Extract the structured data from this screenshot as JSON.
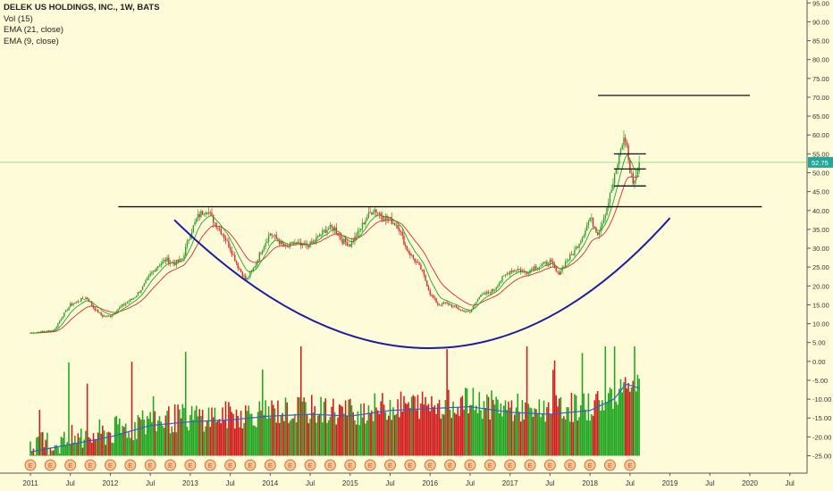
{
  "legend": {
    "title": "DELEK US HOLDINGS, INC., 1W, BATS",
    "vol": "Vol (15)",
    "ema21": "EMA (21, close)",
    "ema9": "EMA (9, close)"
  },
  "chart_data": {
    "type": "candlestick",
    "symbol": "DELEK US HOLDINGS, INC.",
    "interval": "1W",
    "exchange": "BATS",
    "last_price": 52.75,
    "last_price_label": "52.75",
    "y_ticks": [
      "95.00",
      "90.00",
      "85.00",
      "80.00",
      "75.00",
      "70.00",
      "65.00",
      "60.00",
      "55.00",
      "50.00",
      "45.00",
      "40.00",
      "35.00",
      "30.00",
      "25.00",
      "20.00",
      "15.00",
      "10.00",
      "5.00",
      "0.00",
      "-5.00",
      "-10.00",
      "-15.00",
      "-20.00",
      "-25.00"
    ],
    "x_ticks": [
      "2011",
      "Jul",
      "2012",
      "Jul",
      "2013",
      "Jul",
      "2014",
      "Jul",
      "2015",
      "Jul",
      "2016",
      "Jul",
      "2017",
      "Jul",
      "2018",
      "Jul",
      "2019",
      "Jul",
      "2020",
      "Jul"
    ],
    "earnings_marker": "E",
    "price_points": [
      [
        2011.0,
        7.5
      ],
      [
        2011.1,
        7.8
      ],
      [
        2011.2,
        8.0
      ],
      [
        2011.3,
        8.3
      ],
      [
        2011.4,
        12.0
      ],
      [
        2011.5,
        15.0
      ],
      [
        2011.6,
        16.0
      ],
      [
        2011.7,
        17.0
      ],
      [
        2011.8,
        14.0
      ],
      [
        2011.9,
        12.0
      ],
      [
        2012.0,
        12.0
      ],
      [
        2012.1,
        14.0
      ],
      [
        2012.2,
        15.5
      ],
      [
        2012.3,
        17.0
      ],
      [
        2012.4,
        19.5
      ],
      [
        2012.5,
        23.0
      ],
      [
        2012.6,
        25.5
      ],
      [
        2012.7,
        27.0
      ],
      [
        2012.8,
        26.0
      ],
      [
        2012.9,
        27.0
      ],
      [
        2013.0,
        34.0
      ],
      [
        2013.1,
        38.5
      ],
      [
        2013.2,
        40.5
      ],
      [
        2013.3,
        37.0
      ],
      [
        2013.4,
        34.0
      ],
      [
        2013.5,
        30.0
      ],
      [
        2013.6,
        25.0
      ],
      [
        2013.7,
        21.5
      ],
      [
        2013.8,
        25.0
      ],
      [
        2013.9,
        30.0
      ],
      [
        2014.0,
        34.0
      ],
      [
        2014.1,
        32.0
      ],
      [
        2014.2,
        30.0
      ],
      [
        2014.3,
        31.5
      ],
      [
        2014.4,
        30.5
      ],
      [
        2014.5,
        31.0
      ],
      [
        2014.6,
        33.0
      ],
      [
        2014.7,
        35.0
      ],
      [
        2014.8,
        35.5
      ],
      [
        2014.9,
        32.0
      ],
      [
        2015.0,
        31.0
      ],
      [
        2015.1,
        34.0
      ],
      [
        2015.2,
        38.0
      ],
      [
        2015.3,
        40.5
      ],
      [
        2015.4,
        38.5
      ],
      [
        2015.5,
        37.5
      ],
      [
        2015.6,
        36.0
      ],
      [
        2015.7,
        30.0
      ],
      [
        2015.8,
        27.0
      ],
      [
        2015.9,
        24.0
      ],
      [
        2016.0,
        18.0
      ],
      [
        2016.1,
        15.0
      ],
      [
        2016.2,
        15.5
      ],
      [
        2016.3,
        14.5
      ],
      [
        2016.4,
        13.5
      ],
      [
        2016.5,
        13.0
      ],
      [
        2016.6,
        17.0
      ],
      [
        2016.7,
        18.0
      ],
      [
        2016.8,
        19.0
      ],
      [
        2016.9,
        22.0
      ],
      [
        2017.0,
        24.0
      ],
      [
        2017.1,
        24.5
      ],
      [
        2017.2,
        23.5
      ],
      [
        2017.3,
        25.0
      ],
      [
        2017.4,
        25.5
      ],
      [
        2017.5,
        26.5
      ],
      [
        2017.6,
        23.0
      ],
      [
        2017.7,
        26.5
      ],
      [
        2017.8,
        29.0
      ],
      [
        2017.9,
        33.0
      ],
      [
        2018.0,
        38.0
      ],
      [
        2018.1,
        34.0
      ],
      [
        2018.2,
        40.0
      ],
      [
        2018.3,
        48.0
      ],
      [
        2018.4,
        58.0
      ],
      [
        2018.45,
        59.0
      ],
      [
        2018.5,
        50.0
      ],
      [
        2018.55,
        47.5
      ],
      [
        2018.62,
        52.75
      ]
    ],
    "volume_ema": [
      [
        2011.0,
        -24.0
      ],
      [
        2011.5,
        -22.0
      ],
      [
        2012.0,
        -20.0
      ],
      [
        2012.5,
        -17.0
      ],
      [
        2013.0,
        -16.0
      ],
      [
        2013.5,
        -15.5
      ],
      [
        2014.0,
        -14.5
      ],
      [
        2014.5,
        -14.0
      ],
      [
        2015.0,
        -14.5
      ],
      [
        2015.5,
        -13.0
      ],
      [
        2016.0,
        -12.5
      ],
      [
        2016.5,
        -12.0
      ],
      [
        2017.0,
        -13.5
      ],
      [
        2017.5,
        -14.0
      ],
      [
        2018.0,
        -13.0
      ],
      [
        2018.3,
        -10.0
      ],
      [
        2018.45,
        -6.0
      ],
      [
        2018.6,
        -7.0
      ]
    ],
    "horizontal_lines": [
      {
        "x1": 2012.1,
        "x2": 2020.15,
        "y": 41.0
      },
      {
        "x1": 2018.1,
        "x2": 2020.0,
        "y": 70.5
      },
      {
        "x1": 2018.3,
        "x2": 2018.7,
        "y": 46.5
      },
      {
        "x1": 2018.3,
        "x2": 2018.7,
        "y": 55.0
      },
      {
        "x1": 2018.3,
        "x2": 2018.7,
        "y": 51.0
      }
    ],
    "cup_curve": {
      "x_start": 2012.8,
      "y_start": 37.5,
      "x_mid": 2016.0,
      "y_mid": 3.5,
      "x_end": 2019.0,
      "y_end": 38.0
    }
  }
}
